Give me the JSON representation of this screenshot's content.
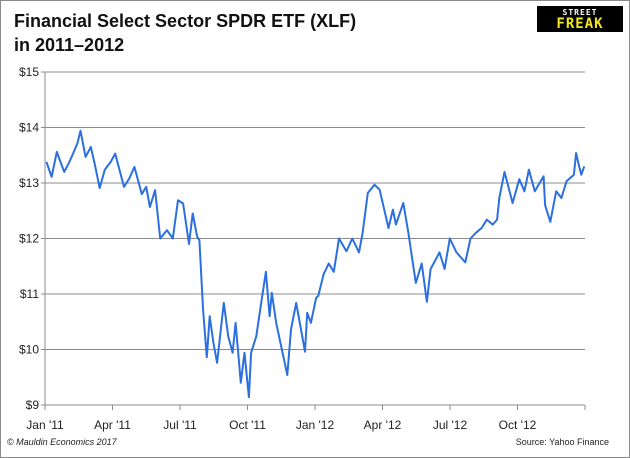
{
  "chart_data": {
    "type": "line",
    "title": "Financial Select Sector SPDR ETF (XLF)",
    "subtitle": "in 2011–2012",
    "xlabel": "",
    "ylabel": "",
    "ylim": [
      9,
      15
    ],
    "xlim": [
      "2011-01-01",
      "2013-01-01"
    ],
    "grid": true,
    "y_ticks": [
      "$9",
      "$10",
      "$11",
      "$12",
      "$13",
      "$14",
      "$15"
    ],
    "x_ticks": [
      "Jan '11",
      "Apr '11",
      "Jul '11",
      "Oct '11",
      "Jan '12",
      "Apr '12",
      "Jul '12",
      "Oct '12"
    ],
    "line_color": "#2b6fe0",
    "series": [
      {
        "points": [
          [
            "2011-01-03",
            13.38
          ],
          [
            "2011-01-10",
            13.11
          ],
          [
            "2011-01-17",
            13.56
          ],
          [
            "2011-01-27",
            13.2
          ],
          [
            "2011-02-03",
            13.38
          ],
          [
            "2011-02-09",
            13.56
          ],
          [
            "2011-02-14",
            13.72
          ],
          [
            "2011-02-18",
            13.94
          ],
          [
            "2011-02-25",
            13.47
          ],
          [
            "2011-03-04",
            13.65
          ],
          [
            "2011-03-09",
            13.36
          ],
          [
            "2011-03-16",
            12.91
          ],
          [
            "2011-03-23",
            13.24
          ],
          [
            "2011-03-31",
            13.38
          ],
          [
            "2011-04-06",
            13.53
          ],
          [
            "2011-04-18",
            12.93
          ],
          [
            "2011-04-25",
            13.08
          ],
          [
            "2011-05-02",
            13.29
          ],
          [
            "2011-05-12",
            12.8
          ],
          [
            "2011-05-18",
            12.93
          ],
          [
            "2011-05-23",
            12.57
          ],
          [
            "2011-05-30",
            12.87
          ],
          [
            "2011-06-06",
            12.0
          ],
          [
            "2011-06-15",
            12.15
          ],
          [
            "2011-06-23",
            12.0
          ],
          [
            "2011-06-30",
            12.69
          ],
          [
            "2011-07-07",
            12.63
          ],
          [
            "2011-07-15",
            11.9
          ],
          [
            "2011-07-20",
            12.45
          ],
          [
            "2011-07-26",
            12.03
          ],
          [
            "2011-07-29",
            11.97
          ],
          [
            "2011-08-03",
            10.71
          ],
          [
            "2011-08-08",
            9.86
          ],
          [
            "2011-08-12",
            10.6
          ],
          [
            "2011-08-17",
            10.12
          ],
          [
            "2011-08-22",
            9.76
          ],
          [
            "2011-08-31",
            10.84
          ],
          [
            "2011-09-06",
            10.24
          ],
          [
            "2011-09-12",
            9.94
          ],
          [
            "2011-09-16",
            10.48
          ],
          [
            "2011-09-23",
            9.4
          ],
          [
            "2011-09-28",
            9.94
          ],
          [
            "2011-10-04",
            9.14
          ],
          [
            "2011-10-07",
            9.94
          ],
          [
            "2011-10-14",
            10.24
          ],
          [
            "2011-10-20",
            10.78
          ],
          [
            "2011-10-27",
            11.4
          ],
          [
            "2011-11-01",
            10.6
          ],
          [
            "2011-11-04",
            11.02
          ],
          [
            "2011-11-10",
            10.48
          ],
          [
            "2011-11-25",
            9.54
          ],
          [
            "2011-11-30",
            10.36
          ],
          [
            "2011-12-07",
            10.84
          ],
          [
            "2011-12-19",
            9.96
          ],
          [
            "2011-12-22",
            10.66
          ],
          [
            "2011-12-27",
            10.48
          ],
          [
            "2012-01-03",
            10.93
          ],
          [
            "2012-01-06",
            10.97
          ],
          [
            "2012-01-13",
            11.35
          ],
          [
            "2012-01-20",
            11.55
          ],
          [
            "2012-01-27",
            11.4
          ],
          [
            "2012-02-03",
            12.0
          ],
          [
            "2012-02-13",
            11.77
          ],
          [
            "2012-02-21",
            12.0
          ],
          [
            "2012-03-01",
            11.75
          ],
          [
            "2012-03-06",
            12.1
          ],
          [
            "2012-03-13",
            12.82
          ],
          [
            "2012-03-22",
            12.97
          ],
          [
            "2012-03-29",
            12.88
          ],
          [
            "2012-04-10",
            12.19
          ],
          [
            "2012-04-16",
            12.52
          ],
          [
            "2012-04-20",
            12.25
          ],
          [
            "2012-04-30",
            12.64
          ],
          [
            "2012-05-07",
            12.1
          ],
          [
            "2012-05-17",
            11.2
          ],
          [
            "2012-05-25",
            11.55
          ],
          [
            "2012-06-01",
            10.86
          ],
          [
            "2012-06-06",
            11.45
          ],
          [
            "2012-06-18",
            11.75
          ],
          [
            "2012-06-25",
            11.45
          ],
          [
            "2012-07-02",
            12.0
          ],
          [
            "2012-07-11",
            11.75
          ],
          [
            "2012-07-23",
            11.57
          ],
          [
            "2012-07-30",
            12.0
          ],
          [
            "2012-08-06",
            12.1
          ],
          [
            "2012-08-14",
            12.19
          ],
          [
            "2012-08-21",
            12.34
          ],
          [
            "2012-08-29",
            12.25
          ],
          [
            "2012-09-04",
            12.34
          ],
          [
            "2012-09-07",
            12.73
          ],
          [
            "2012-09-14",
            13.2
          ],
          [
            "2012-09-25",
            12.64
          ],
          [
            "2012-10-04",
            13.07
          ],
          [
            "2012-10-11",
            12.85
          ],
          [
            "2012-10-17",
            13.24
          ],
          [
            "2012-10-25",
            12.85
          ],
          [
            "2012-11-06",
            13.12
          ],
          [
            "2012-11-08",
            12.6
          ],
          [
            "2012-11-15",
            12.3
          ],
          [
            "2012-11-23",
            12.85
          ],
          [
            "2012-11-30",
            12.73
          ],
          [
            "2012-12-07",
            13.03
          ],
          [
            "2012-12-17",
            13.15
          ],
          [
            "2012-12-20",
            13.54
          ],
          [
            "2012-12-24",
            13.3
          ],
          [
            "2012-12-27",
            13.15
          ],
          [
            "2012-12-31",
            13.3
          ]
        ]
      }
    ]
  },
  "logo": {
    "line1": "STREET",
    "line2": "FREAK"
  },
  "footer": {
    "credit": "© Mauldin Economics 2017",
    "source": "Source: Yahoo Finance"
  }
}
